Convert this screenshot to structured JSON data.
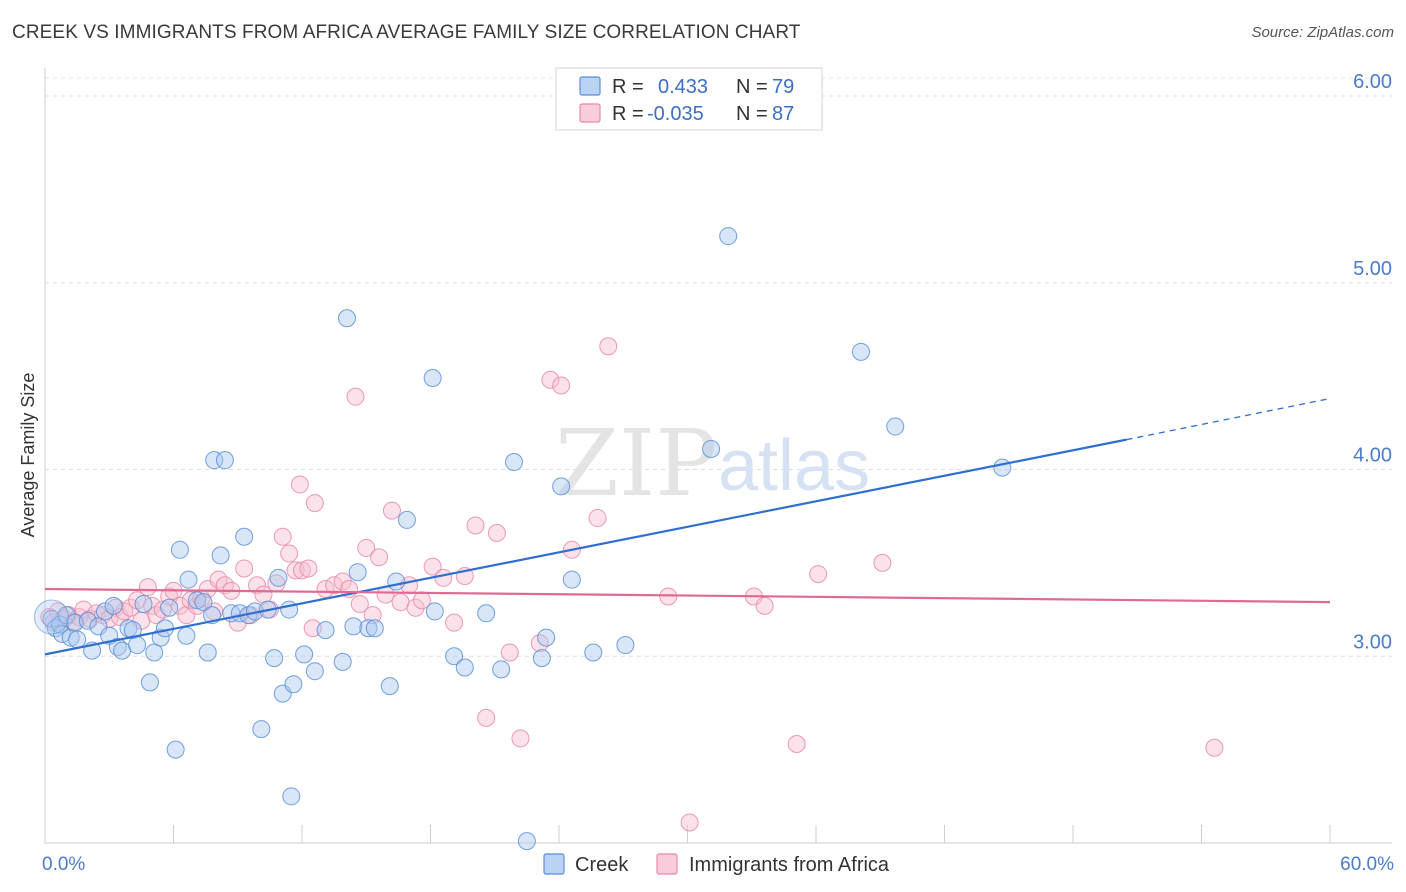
{
  "title": "CREEK VS IMMIGRANTS FROM AFRICA AVERAGE FAMILY SIZE CORRELATION CHART",
  "source": "Source: ZipAtlas.com",
  "chart_data": {
    "type": "scatter",
    "xlabel": "",
    "ylabel": "Average Family Size",
    "xlim": [
      0,
      60
    ],
    "ylim": [
      2.0,
      6.15
    ],
    "x_tick_labels": [
      "0.0%",
      "60.0%"
    ],
    "y_ticks": [
      3.0,
      4.0,
      5.0,
      6.0
    ],
    "y_tick_labels": [
      "3.00",
      "4.00",
      "5.00",
      "6.00"
    ],
    "grid": true,
    "watermark": {
      "text1": "ZIP",
      "text2": "atlas"
    },
    "legend": {
      "position": "top-center",
      "entries": [
        {
          "r_label": "R =",
          "r_value": "0.433",
          "n_label": "N =",
          "n_value": "79",
          "color": "#a9c8f0"
        },
        {
          "r_label": "R =",
          "r_value": "-0.035",
          "n_label": "N =",
          "n_value": "87",
          "color": "#f6bfd1"
        }
      ]
    },
    "series": [
      {
        "name": "Creek",
        "color": "#a9c8f0",
        "stroke": "#5b8fd9",
        "trend": {
          "x0": 0,
          "y0": 3.01,
          "x1": 50.5,
          "y1": 4.16,
          "dash_x1": 60,
          "dash_y1": 4.38,
          "color": "#2f6fcd"
        },
        "points": [
          [
            0.3,
            3.2
          ],
          [
            0.5,
            3.15
          ],
          [
            0.7,
            3.17
          ],
          [
            0.8,
            3.12
          ],
          [
            1.0,
            3.22
          ],
          [
            1.2,
            3.1
          ],
          [
            1.4,
            3.18
          ],
          [
            1.5,
            3.09
          ],
          [
            2.0,
            3.19
          ],
          [
            2.2,
            3.03
          ],
          [
            2.5,
            3.16
          ],
          [
            2.8,
            3.24
          ],
          [
            3.0,
            3.11
          ],
          [
            3.2,
            3.27
          ],
          [
            3.4,
            3.05
          ],
          [
            3.6,
            3.03
          ],
          [
            3.9,
            3.15
          ],
          [
            4.1,
            3.14
          ],
          [
            4.3,
            3.06
          ],
          [
            4.6,
            3.28
          ],
          [
            4.9,
            2.86
          ],
          [
            5.1,
            3.02
          ],
          [
            5.4,
            3.1
          ],
          [
            5.6,
            3.15
          ],
          [
            5.8,
            3.26
          ],
          [
            6.1,
            2.5
          ],
          [
            6.3,
            3.57
          ],
          [
            6.6,
            3.11
          ],
          [
            6.7,
            3.41
          ],
          [
            7.1,
            3.3
          ],
          [
            7.4,
            3.29
          ],
          [
            7.6,
            3.02
          ],
          [
            7.8,
            3.22
          ],
          [
            7.9,
            4.05
          ],
          [
            8.2,
            3.54
          ],
          [
            8.4,
            4.05
          ],
          [
            8.7,
            3.23
          ],
          [
            9.1,
            3.23
          ],
          [
            9.3,
            3.64
          ],
          [
            9.5,
            3.22
          ],
          [
            9.8,
            3.24
          ],
          [
            10.1,
            2.61
          ],
          [
            10.4,
            3.25
          ],
          [
            10.7,
            2.99
          ],
          [
            10.9,
            3.42
          ],
          [
            11.1,
            2.8
          ],
          [
            11.4,
            3.25
          ],
          [
            11.5,
            2.25
          ],
          [
            11.6,
            2.85
          ],
          [
            12.1,
            3.01
          ],
          [
            12.6,
            2.92
          ],
          [
            13.1,
            3.14
          ],
          [
            13.9,
            2.97
          ],
          [
            14.1,
            4.81
          ],
          [
            14.4,
            3.16
          ],
          [
            14.6,
            3.45
          ],
          [
            15.1,
            3.15
          ],
          [
            15.4,
            3.15
          ],
          [
            16.4,
            3.4
          ],
          [
            16.1,
            2.84
          ],
          [
            16.9,
            3.73
          ],
          [
            18.1,
            4.49
          ],
          [
            18.2,
            3.24
          ],
          [
            19.1,
            3.0
          ],
          [
            19.6,
            2.94
          ],
          [
            20.6,
            3.23
          ],
          [
            21.3,
            2.93
          ],
          [
            21.9,
            4.04
          ],
          [
            23.2,
            2.99
          ],
          [
            23.4,
            3.1
          ],
          [
            24.1,
            3.91
          ],
          [
            24.6,
            3.41
          ],
          [
            25.6,
            3.02
          ],
          [
            27.1,
            3.06
          ],
          [
            31.1,
            4.11
          ],
          [
            31.9,
            5.25
          ],
          [
            38.1,
            4.63
          ],
          [
            39.7,
            4.23
          ],
          [
            44.7,
            4.01
          ],
          [
            22.5,
            2.01
          ]
        ]
      },
      {
        "name": "Immigrants from Africa",
        "color": "#f6bfd1",
        "stroke": "#e88aa8",
        "trend": {
          "x0": 0,
          "y0": 3.36,
          "x1": 60,
          "y1": 3.29,
          "color": "#e06a93"
        },
        "points": [
          [
            0.2,
            3.21
          ],
          [
            0.4,
            3.18
          ],
          [
            0.6,
            3.24
          ],
          [
            0.9,
            3.2
          ],
          [
            1.1,
            3.22
          ],
          [
            1.3,
            3.18
          ],
          [
            1.6,
            3.21
          ],
          [
            1.8,
            3.25
          ],
          [
            2.1,
            3.2
          ],
          [
            2.4,
            3.23
          ],
          [
            2.7,
            3.22
          ],
          [
            3.0,
            3.2
          ],
          [
            3.3,
            3.26
          ],
          [
            3.5,
            3.21
          ],
          [
            3.7,
            3.24
          ],
          [
            4.0,
            3.26
          ],
          [
            4.3,
            3.3
          ],
          [
            4.5,
            3.19
          ],
          [
            4.8,
            3.37
          ],
          [
            5.0,
            3.27
          ],
          [
            5.2,
            3.22
          ],
          [
            5.5,
            3.25
          ],
          [
            5.8,
            3.32
          ],
          [
            6.0,
            3.35
          ],
          [
            6.3,
            3.27
          ],
          [
            6.6,
            3.22
          ],
          [
            6.8,
            3.3
          ],
          [
            7.1,
            3.27
          ],
          [
            7.3,
            3.31
          ],
          [
            7.6,
            3.36
          ],
          [
            7.9,
            3.24
          ],
          [
            8.1,
            3.41
          ],
          [
            8.4,
            3.38
          ],
          [
            8.7,
            3.35
          ],
          [
            9.0,
            3.18
          ],
          [
            9.3,
            3.47
          ],
          [
            9.6,
            3.22
          ],
          [
            9.9,
            3.38
          ],
          [
            10.2,
            3.33
          ],
          [
            10.5,
            3.25
          ],
          [
            10.8,
            3.39
          ],
          [
            11.1,
            3.64
          ],
          [
            11.4,
            3.55
          ],
          [
            11.7,
            3.46
          ],
          [
            12.0,
            3.46
          ],
          [
            12.3,
            3.47
          ],
          [
            11.9,
            3.92
          ],
          [
            12.5,
            3.15
          ],
          [
            12.6,
            3.82
          ],
          [
            13.1,
            3.36
          ],
          [
            13.5,
            3.38
          ],
          [
            13.9,
            3.4
          ],
          [
            14.2,
            3.36
          ],
          [
            14.5,
            4.39
          ],
          [
            14.7,
            3.28
          ],
          [
            15.0,
            3.58
          ],
          [
            15.3,
            3.22
          ],
          [
            15.6,
            3.53
          ],
          [
            15.9,
            3.33
          ],
          [
            16.2,
            3.78
          ],
          [
            16.6,
            3.29
          ],
          [
            17.0,
            3.38
          ],
          [
            17.3,
            3.26
          ],
          [
            17.6,
            3.3
          ],
          [
            18.1,
            3.48
          ],
          [
            18.6,
            3.42
          ],
          [
            19.1,
            3.18
          ],
          [
            19.6,
            3.43
          ],
          [
            20.1,
            3.7
          ],
          [
            20.6,
            2.67
          ],
          [
            21.1,
            3.66
          ],
          [
            21.7,
            3.02
          ],
          [
            22.2,
            2.56
          ],
          [
            23.1,
            3.07
          ],
          [
            23.6,
            4.48
          ],
          [
            24.1,
            4.45
          ],
          [
            24.6,
            3.57
          ],
          [
            25.8,
            3.74
          ],
          [
            26.3,
            4.66
          ],
          [
            29.1,
            3.32
          ],
          [
            30.1,
            2.11
          ],
          [
            33.1,
            3.32
          ],
          [
            33.6,
            3.27
          ],
          [
            35.1,
            2.53
          ],
          [
            36.1,
            3.44
          ],
          [
            39.1,
            3.5
          ],
          [
            54.6,
            2.51
          ]
        ]
      }
    ]
  }
}
